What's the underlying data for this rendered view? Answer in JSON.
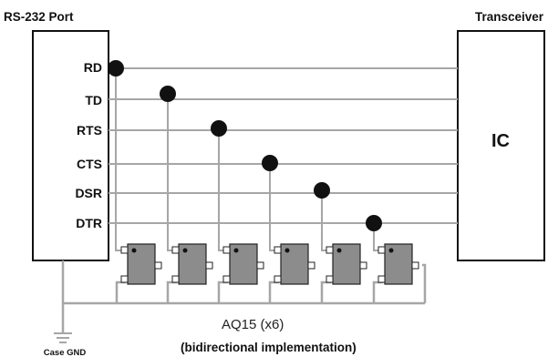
{
  "port_title": "RS-232 Port",
  "transceiver_title": "Transceiver",
  "ic_label": "IC",
  "pins": [
    "RD",
    "TD",
    "RTS",
    "CTS",
    "DSR",
    "DTR"
  ],
  "device_label": "AQ15 (x6)",
  "caption": "(bidirectional implementation)",
  "ground_label": "Case GND",
  "colors": {
    "wire": "#a6a6a6",
    "node": "#111111",
    "device_fill": "#8c8c8c",
    "device_stroke": "#222222",
    "box_stroke": "#111111"
  }
}
